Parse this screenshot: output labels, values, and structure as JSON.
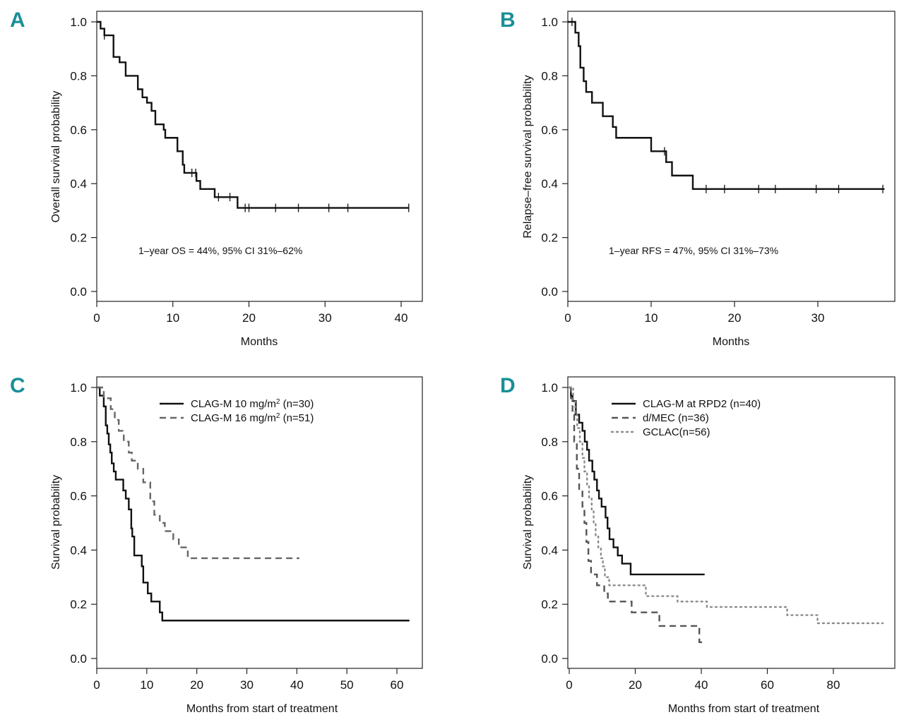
{
  "chart_data": [
    {
      "id": "A",
      "panel_letter": "A",
      "type": "line",
      "step": true,
      "xlabel": "Months",
      "ylabel": "Overall survival probability",
      "xlim": [
        0,
        42
      ],
      "ylim": [
        0,
        1.0
      ],
      "xticks": [
        0,
        10,
        20,
        30,
        40
      ],
      "yticks": [
        0.0,
        0.2,
        0.4,
        0.6,
        0.8,
        1.0
      ],
      "annotation": "1–year OS = 44%, 95% CI 31%–62%",
      "series": [
        {
          "name": "Overall survival",
          "style": "solid",
          "color": "#111111",
          "steps": [
            [
              0,
              1.0
            ],
            [
              0.5,
              0.975
            ],
            [
              1.0,
              0.95
            ],
            [
              2.2,
              0.87
            ],
            [
              3.0,
              0.85
            ],
            [
              3.8,
              0.8
            ],
            [
              5.4,
              0.75
            ],
            [
              6.0,
              0.72
            ],
            [
              6.6,
              0.7
            ],
            [
              7.2,
              0.67
            ],
            [
              7.7,
              0.62
            ],
            [
              8.8,
              0.6
            ],
            [
              9.0,
              0.57
            ],
            [
              10.6,
              0.52
            ],
            [
              11.3,
              0.47
            ],
            [
              11.5,
              0.44
            ],
            [
              13.1,
              0.41
            ],
            [
              13.6,
              0.38
            ],
            [
              15.5,
              0.35
            ],
            [
              18.5,
              0.31
            ],
            [
              41,
              0.31
            ]
          ],
          "censor_x": [
            1.0,
            12.5,
            13.0,
            16.0,
            17.5,
            19.5,
            20.0,
            23.5,
            26.5,
            30.5,
            33.0,
            41.0
          ]
        }
      ]
    },
    {
      "id": "B",
      "panel_letter": "B",
      "type": "line",
      "step": true,
      "xlabel": "Months",
      "ylabel": "Relapse–free survival probability",
      "xlim": [
        0,
        39
      ],
      "ylim": [
        0,
        1.0
      ],
      "xticks": [
        0,
        10,
        20,
        30
      ],
      "yticks": [
        0.0,
        0.2,
        0.4,
        0.6,
        0.8,
        1.0
      ],
      "annotation": "1–year RFS = 47%, 95% CI 31%–73%",
      "series": [
        {
          "name": "Relapse-free survival",
          "style": "solid",
          "color": "#111111",
          "steps": [
            [
              0,
              1.0
            ],
            [
              0.9,
              0.96
            ],
            [
              1.3,
              0.91
            ],
            [
              1.5,
              0.83
            ],
            [
              1.9,
              0.78
            ],
            [
              2.2,
              0.74
            ],
            [
              2.9,
              0.7
            ],
            [
              4.2,
              0.65
            ],
            [
              5.4,
              0.61
            ],
            [
              5.8,
              0.57
            ],
            [
              10.0,
              0.52
            ],
            [
              11.8,
              0.48
            ],
            [
              12.5,
              0.43
            ],
            [
              15.0,
              0.38
            ],
            [
              38,
              0.38
            ]
          ],
          "censor_x": [
            0.5,
            11.6,
            16.6,
            18.8,
            22.9,
            24.9,
            29.8,
            32.5,
            37.8
          ]
        }
      ]
    },
    {
      "id": "C",
      "panel_letter": "C",
      "type": "line",
      "step": true,
      "xlabel": "Months from start of treatment",
      "ylabel": "Survival probability",
      "xlim": [
        0,
        65
      ],
      "ylim": [
        0,
        1.0
      ],
      "xticks": [
        0,
        10,
        20,
        30,
        40,
        50,
        60
      ],
      "yticks": [
        0.0,
        0.2,
        0.4,
        0.6,
        0.8,
        1.0
      ],
      "legend_position": "top-center",
      "series": [
        {
          "name": "CLAG-M 10 mg/m",
          "superscript": "2",
          "name_suffix": " (n=30)",
          "style": "solid",
          "color": "#111111",
          "steps": [
            [
              0,
              1.0
            ],
            [
              0.6,
              0.97
            ],
            [
              1.4,
              0.93
            ],
            [
              1.8,
              0.86
            ],
            [
              2.1,
              0.83
            ],
            [
              2.4,
              0.79
            ],
            [
              2.7,
              0.76
            ],
            [
              3.0,
              0.72
            ],
            [
              3.4,
              0.69
            ],
            [
              3.8,
              0.66
            ],
            [
              5.3,
              0.62
            ],
            [
              5.8,
              0.59
            ],
            [
              6.4,
              0.55
            ],
            [
              6.9,
              0.48
            ],
            [
              7.1,
              0.45
            ],
            [
              7.5,
              0.38
            ],
            [
              9.0,
              0.34
            ],
            [
              9.3,
              0.28
            ],
            [
              10.2,
              0.24
            ],
            [
              10.9,
              0.21
            ],
            [
              12.6,
              0.17
            ],
            [
              13.1,
              0.14
            ],
            [
              62.5,
              0.14
            ]
          ]
        },
        {
          "name": "CLAG-M 16 mg/m",
          "superscript": "2",
          "name_suffix": " (n=51)",
          "style": "dashed",
          "color": "#666666",
          "steps": [
            [
              0,
              1.0
            ],
            [
              1.4,
              0.96
            ],
            [
              2.8,
              0.92
            ],
            [
              3.6,
              0.88
            ],
            [
              4.4,
              0.84
            ],
            [
              5.4,
              0.8
            ],
            [
              6.4,
              0.76
            ],
            [
              7.0,
              0.73
            ],
            [
              8.2,
              0.7
            ],
            [
              9.3,
              0.65
            ],
            [
              10.7,
              0.58
            ],
            [
              11.5,
              0.53
            ],
            [
              12.6,
              0.5
            ],
            [
              13.6,
              0.47
            ],
            [
              15.3,
              0.44
            ],
            [
              16.4,
              0.41
            ],
            [
              18.2,
              0.37
            ],
            [
              40.5,
              0.37
            ]
          ]
        }
      ]
    },
    {
      "id": "D",
      "panel_letter": "D",
      "type": "line",
      "step": true,
      "xlabel": "Months from start of treatment",
      "ylabel": "Survival probability",
      "xlim": [
        0,
        98
      ],
      "ylim": [
        0,
        1.0
      ],
      "xticks": [
        0,
        20,
        40,
        60,
        80
      ],
      "yticks": [
        0.0,
        0.2,
        0.4,
        0.6,
        0.8,
        1.0
      ],
      "legend_position": "top-center",
      "series": [
        {
          "name": "CLAG-M at RPD2 (n=40)",
          "style": "solid",
          "color": "#111111",
          "steps": [
            [
              0,
              1.0
            ],
            [
              0.5,
              0.97
            ],
            [
              1.0,
              0.95
            ],
            [
              2.0,
              0.9
            ],
            [
              3.0,
              0.87
            ],
            [
              4.0,
              0.84
            ],
            [
              4.7,
              0.8
            ],
            [
              5.4,
              0.77
            ],
            [
              6.0,
              0.73
            ],
            [
              7.0,
              0.69
            ],
            [
              7.6,
              0.66
            ],
            [
              8.4,
              0.62
            ],
            [
              9.0,
              0.59
            ],
            [
              9.8,
              0.56
            ],
            [
              11.0,
              0.52
            ],
            [
              11.6,
              0.48
            ],
            [
              12.2,
              0.44
            ],
            [
              13.4,
              0.41
            ],
            [
              14.7,
              0.38
            ],
            [
              16.0,
              0.35
            ],
            [
              18.6,
              0.31
            ],
            [
              41,
              0.31
            ]
          ]
        },
        {
          "name": "d/MEC (n=36)",
          "style": "dashed",
          "color": "#555555",
          "steps": [
            [
              0,
              1.0
            ],
            [
              0.5,
              0.96
            ],
            [
              1.0,
              0.9
            ],
            [
              1.5,
              0.8
            ],
            [
              2.3,
              0.7
            ],
            [
              3.0,
              0.62
            ],
            [
              4.0,
              0.56
            ],
            [
              4.6,
              0.5
            ],
            [
              5.2,
              0.43
            ],
            [
              5.8,
              0.36
            ],
            [
              6.6,
              0.31
            ],
            [
              8.4,
              0.27
            ],
            [
              10.6,
              0.24
            ],
            [
              11.7,
              0.21
            ],
            [
              18.9,
              0.17
            ],
            [
              27.3,
              0.12
            ],
            [
              39.4,
              0.06
            ],
            [
              41,
              0.06
            ]
          ]
        },
        {
          "name": "GCLAC(n=56)",
          "style": "dotted",
          "color": "#8a8a8a",
          "steps": [
            [
              0,
              1.0
            ],
            [
              1.2,
              0.95
            ],
            [
              1.8,
              0.9
            ],
            [
              2.4,
              0.85
            ],
            [
              3.2,
              0.8
            ],
            [
              4.0,
              0.74
            ],
            [
              4.6,
              0.69
            ],
            [
              5.4,
              0.64
            ],
            [
              6.0,
              0.59
            ],
            [
              6.8,
              0.55
            ],
            [
              7.4,
              0.5
            ],
            [
              8.0,
              0.45
            ],
            [
              8.8,
              0.41
            ],
            [
              9.6,
              0.37
            ],
            [
              10.2,
              0.34
            ],
            [
              10.8,
              0.3
            ],
            [
              12.1,
              0.27
            ],
            [
              23.2,
              0.23
            ],
            [
              32.8,
              0.21
            ],
            [
              41.7,
              0.19
            ],
            [
              66.0,
              0.16
            ],
            [
              75.2,
              0.13
            ],
            [
              95,
              0.13
            ]
          ]
        }
      ]
    }
  ]
}
